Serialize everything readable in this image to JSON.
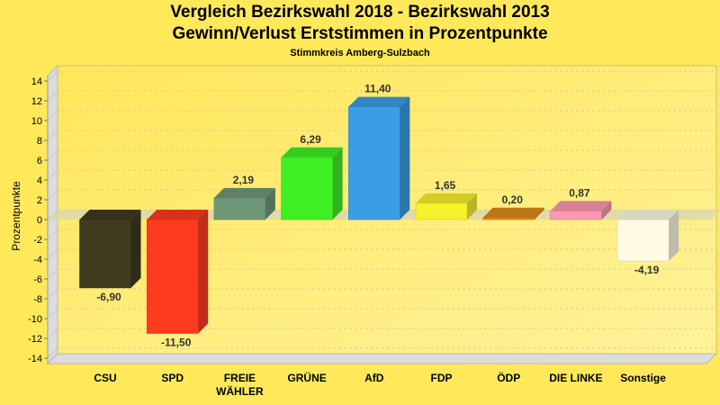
{
  "chart_data": {
    "type": "bar",
    "title": "Vergleich Bezirkswahl 2018 - Bezirkswahl 2013",
    "subtitle": "Gewinn/Verlust Erststimmen in Prozentpunkte",
    "subtitle2": "Stimmkreis Amberg-Sulzbach",
    "xlabel": "",
    "ylabel": "Prozentpunkte",
    "ylim": [
      -14,
      14
    ],
    "yticks": [
      14,
      12,
      10,
      8,
      6,
      4,
      2,
      0,
      -2,
      -4,
      -6,
      -8,
      -10,
      -12,
      -14
    ],
    "grid": true,
    "style": "3d",
    "categories": [
      "CSU",
      "SPD",
      "FREIE WÄHLER",
      "GRÜNE",
      "AfD",
      "FDP",
      "ÖDP",
      "DIE LINKE",
      "Sonstige"
    ],
    "values": [
      -6.9,
      -11.5,
      2.19,
      6.29,
      11.4,
      1.65,
      0.2,
      0.87,
      -4.19
    ],
    "data_labels": [
      "-6,90",
      "-11,50",
      "2,19",
      "6,29",
      "11,40",
      "1,65",
      "0,20",
      "0,87",
      "-4,19"
    ],
    "colors": [
      "#3f3a20",
      "#ff3b1f",
      "#6f9878",
      "#3ef024",
      "#3a9de6",
      "#f6f22c",
      "#e0891c",
      "#ff98b2",
      "#fffbe2"
    ]
  }
}
